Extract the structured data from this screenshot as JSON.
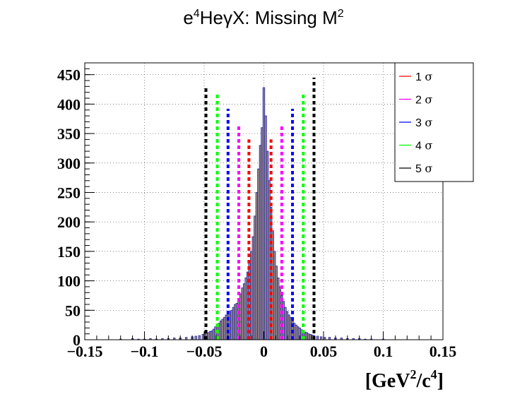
{
  "chart_data": {
    "type": "bar",
    "title": {
      "pre": "e",
      "sup": "4",
      "post": "HeγX: Missing M",
      "sup2": "2"
    },
    "xlabel": {
      "open": "[GeV",
      "sup1": "2",
      "mid": "/c",
      "sup2": "4",
      "close": "]"
    },
    "ylabel": "",
    "xlim": [
      -0.15,
      0.15
    ],
    "ylim": [
      0,
      470
    ],
    "grid": true,
    "x_ticks": [
      {
        "v": -0.15,
        "label": "−0.15"
      },
      {
        "v": -0.1,
        "label": "−0.1"
      },
      {
        "v": -0.05,
        "label": "−0.05"
      },
      {
        "v": 0,
        "label": "0"
      },
      {
        "v": 0.05,
        "label": "0.05"
      },
      {
        "v": 0.1,
        "label": "0.1"
      },
      {
        "v": 0.15,
        "label": "0.15"
      }
    ],
    "y_ticks": [
      {
        "v": 0,
        "label": "0"
      },
      {
        "v": 50,
        "label": "50"
      },
      {
        "v": 100,
        "label": "100"
      },
      {
        "v": 150,
        "label": "150"
      },
      {
        "v": 200,
        "label": "200"
      },
      {
        "v": 250,
        "label": "250"
      },
      {
        "v": 300,
        "label": "300"
      },
      {
        "v": 350,
        "label": "350"
      },
      {
        "v": 400,
        "label": "400"
      },
      {
        "v": 450,
        "label": "450"
      }
    ],
    "histogram": {
      "bin_width": 0.0015,
      "bins": [
        {
          "x": -0.12,
          "y": 1
        },
        {
          "x": -0.11,
          "y": 2
        },
        {
          "x": -0.105,
          "y": 1
        },
        {
          "x": -0.1,
          "y": 1
        },
        {
          "x": -0.095,
          "y": 2
        },
        {
          "x": -0.09,
          "y": 1
        },
        {
          "x": -0.085,
          "y": 2
        },
        {
          "x": -0.08,
          "y": 2
        },
        {
          "x": -0.075,
          "y": 3
        },
        {
          "x": -0.07,
          "y": 3
        },
        {
          "x": -0.065,
          "y": 4
        },
        {
          "x": -0.06,
          "y": 5
        },
        {
          "x": -0.057,
          "y": 6
        },
        {
          "x": -0.054,
          "y": 7
        },
        {
          "x": -0.051,
          "y": 9
        },
        {
          "x": -0.0495,
          "y": 10
        },
        {
          "x": -0.048,
          "y": 12
        },
        {
          "x": -0.0465,
          "y": 12
        },
        {
          "x": -0.045,
          "y": 14
        },
        {
          "x": -0.0435,
          "y": 15
        },
        {
          "x": -0.042,
          "y": 18
        },
        {
          "x": -0.0405,
          "y": 22
        },
        {
          "x": -0.039,
          "y": 25
        },
        {
          "x": -0.0375,
          "y": 28
        },
        {
          "x": -0.036,
          "y": 32
        },
        {
          "x": -0.0345,
          "y": 35
        },
        {
          "x": -0.033,
          "y": 38
        },
        {
          "x": -0.0315,
          "y": 42
        },
        {
          "x": -0.03,
          "y": 45
        },
        {
          "x": -0.0285,
          "y": 48
        },
        {
          "x": -0.027,
          "y": 50
        },
        {
          "x": -0.0255,
          "y": 55
        },
        {
          "x": -0.024,
          "y": 60
        },
        {
          "x": -0.0225,
          "y": 62
        },
        {
          "x": -0.021,
          "y": 70
        },
        {
          "x": -0.0195,
          "y": 78
        },
        {
          "x": -0.018,
          "y": 88
        },
        {
          "x": -0.0165,
          "y": 95
        },
        {
          "x": -0.015,
          "y": 105
        },
        {
          "x": -0.0135,
          "y": 115
        },
        {
          "x": -0.012,
          "y": 130
        },
        {
          "x": -0.0105,
          "y": 150
        },
        {
          "x": -0.009,
          "y": 175
        },
        {
          "x": -0.0075,
          "y": 210
        },
        {
          "x": -0.006,
          "y": 250
        },
        {
          "x": -0.0045,
          "y": 290
        },
        {
          "x": -0.003,
          "y": 330
        },
        {
          "x": -0.0015,
          "y": 360
        },
        {
          "x": 0.0,
          "y": 428
        },
        {
          "x": 0.0015,
          "y": 380
        },
        {
          "x": 0.003,
          "y": 320
        },
        {
          "x": 0.0045,
          "y": 270
        },
        {
          "x": 0.006,
          "y": 225
        },
        {
          "x": 0.0075,
          "y": 185
        },
        {
          "x": 0.009,
          "y": 150
        },
        {
          "x": 0.0105,
          "y": 125
        },
        {
          "x": 0.012,
          "y": 105
        },
        {
          "x": 0.0135,
          "y": 90
        },
        {
          "x": 0.015,
          "y": 75
        },
        {
          "x": 0.0165,
          "y": 65
        },
        {
          "x": 0.018,
          "y": 55
        },
        {
          "x": 0.0195,
          "y": 48
        },
        {
          "x": 0.021,
          "y": 42
        },
        {
          "x": 0.0225,
          "y": 38
        },
        {
          "x": 0.024,
          "y": 32
        },
        {
          "x": 0.0255,
          "y": 28
        },
        {
          "x": 0.027,
          "y": 25
        },
        {
          "x": 0.0285,
          "y": 22
        },
        {
          "x": 0.03,
          "y": 20
        },
        {
          "x": 0.0315,
          "y": 17
        },
        {
          "x": 0.033,
          "y": 15
        },
        {
          "x": 0.0345,
          "y": 13
        },
        {
          "x": 0.036,
          "y": 12
        },
        {
          "x": 0.0375,
          "y": 10
        },
        {
          "x": 0.039,
          "y": 9
        },
        {
          "x": 0.0405,
          "y": 8
        },
        {
          "x": 0.042,
          "y": 7
        },
        {
          "x": 0.045,
          "y": 6
        },
        {
          "x": 0.048,
          "y": 5
        },
        {
          "x": 0.051,
          "y": 4
        },
        {
          "x": 0.055,
          "y": 4
        },
        {
          "x": 0.06,
          "y": 3
        },
        {
          "x": 0.065,
          "y": 3
        },
        {
          "x": 0.07,
          "y": 2
        },
        {
          "x": 0.075,
          "y": 2
        },
        {
          "x": 0.08,
          "y": 2
        },
        {
          "x": 0.085,
          "y": 1
        },
        {
          "x": 0.09,
          "y": 1
        },
        {
          "x": 0.1,
          "y": 1
        }
      ],
      "fill_color": "#a09080",
      "line_color": "#1a1aa8"
    },
    "sigma_lines": [
      {
        "name": "1 σ",
        "color": "#ff0000",
        "x": [
          -0.0125,
          0.006
        ],
        "heights": [
          340,
          340
        ]
      },
      {
        "name": "2 σ",
        "color": "#ff00ff",
        "x": [
          -0.021,
          0.015
        ],
        "heights": [
          365,
          365
        ]
      },
      {
        "name": "3 σ",
        "color": "#0000ff",
        "x": [
          -0.03,
          0.024
        ],
        "heights": [
          392,
          392
        ]
      },
      {
        "name": "4 σ",
        "color": "#00ff00",
        "x": [
          -0.039,
          0.033
        ],
        "heights": [
          420,
          420
        ]
      },
      {
        "name": "5 σ",
        "color": "#000000",
        "x": [
          -0.0485,
          0.042
        ],
        "heights": [
          428,
          445
        ]
      }
    ],
    "legend": {
      "placement": "top-right",
      "entries": [
        {
          "label": "1",
          "sigma": "σ",
          "color": "#ff0000"
        },
        {
          "label": "2",
          "sigma": "σ",
          "color": "#ff00ff"
        },
        {
          "label": "3",
          "sigma": "σ",
          "color": "#0000ff"
        },
        {
          "label": "4",
          "sigma": "σ",
          "color": "#00ff00"
        },
        {
          "label": "5",
          "sigma": "σ",
          "color": "#000000"
        }
      ]
    }
  }
}
